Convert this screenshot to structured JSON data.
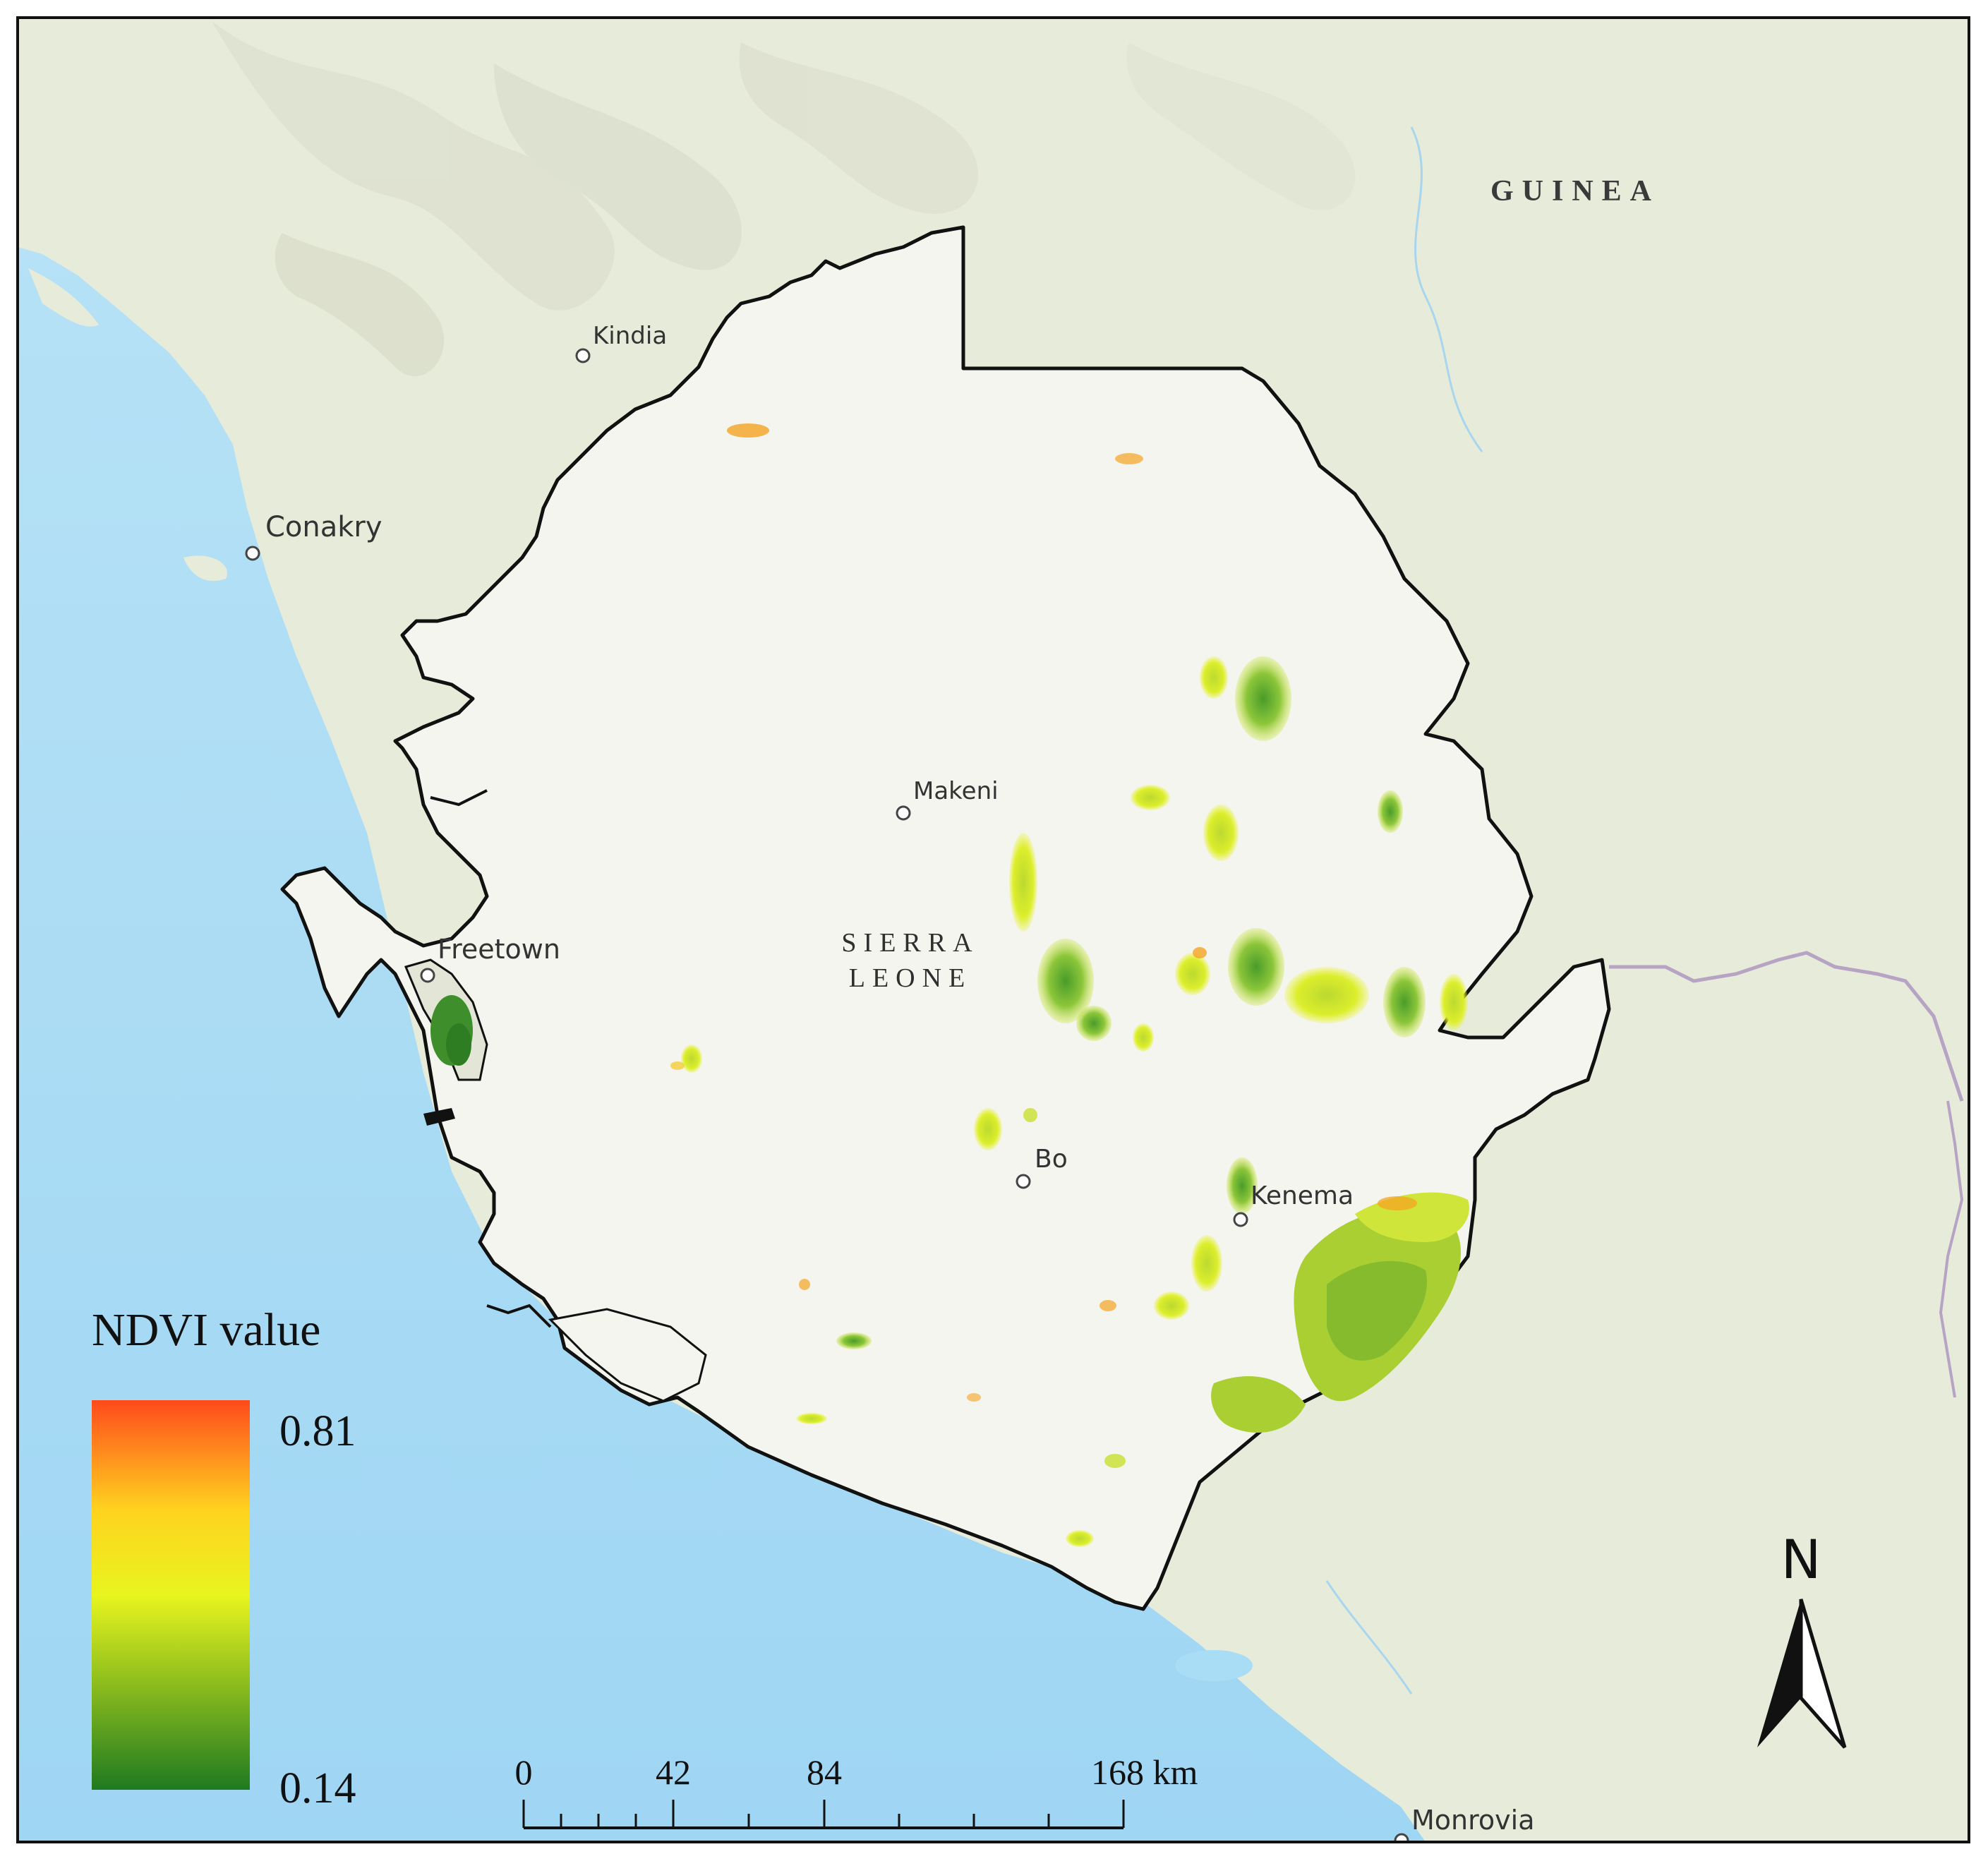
{
  "map": {
    "countries": [
      {
        "id": "guinea",
        "label": "GUINEA"
      },
      {
        "id": "sierra-leone",
        "label_line1": "SIERRA",
        "label_line2": "LEONE"
      }
    ],
    "cities": [
      {
        "id": "kindia",
        "name": "Kindia"
      },
      {
        "id": "conakry",
        "name": "Conakry"
      },
      {
        "id": "makeni",
        "name": "Makeni"
      },
      {
        "id": "freetown",
        "name": "Freetown"
      },
      {
        "id": "bo",
        "name": "Bo"
      },
      {
        "id": "kenema",
        "name": "Kenema"
      },
      {
        "id": "monrovia",
        "name": "Monrovia"
      }
    ],
    "colors": {
      "ocean": "#a9dcf5",
      "land": "#e9ecdc",
      "country_fill": "#f3f4ec",
      "border": "#111111",
      "intl_border": "#b7a3c4",
      "ndvi_low": "#1f7a1f",
      "ndvi_mid": "#e8f31f",
      "ndvi_high": "#ff4a1c"
    }
  },
  "legend": {
    "title": "NDVI value",
    "max_label": "0.81",
    "min_label": "0.14",
    "min_value": 0.14,
    "max_value": 0.81
  },
  "scale_bar": {
    "labels": [
      "0",
      "42",
      "84",
      "168 km"
    ]
  },
  "north_arrow": {
    "label": "N"
  }
}
